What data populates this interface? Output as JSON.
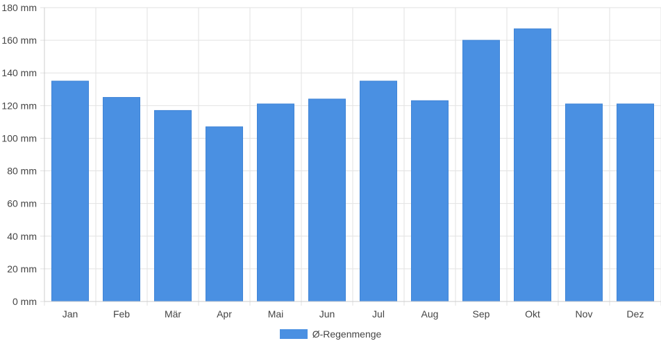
{
  "chart_data": {
    "type": "bar",
    "categories": [
      "Jan",
      "Feb",
      "Mär",
      "Apr",
      "Mai",
      "Jun",
      "Jul",
      "Aug",
      "Sep",
      "Okt",
      "Nov",
      "Dez"
    ],
    "series": [
      {
        "name": "Ø-Regenmenge",
        "values": [
          135,
          125,
          117,
          107,
          121,
          124,
          135,
          123,
          160,
          167,
          121,
          121
        ],
        "color": "#4a90e2"
      }
    ],
    "y_ticks": [
      "0 mm",
      "20 mm",
      "40 mm",
      "60 mm",
      "80 mm",
      "100 mm",
      "120 mm",
      "140 mm",
      "160 mm",
      "180 mm"
    ],
    "ylim": [
      0,
      180
    ],
    "grid": true,
    "legend_position": "bottom"
  }
}
